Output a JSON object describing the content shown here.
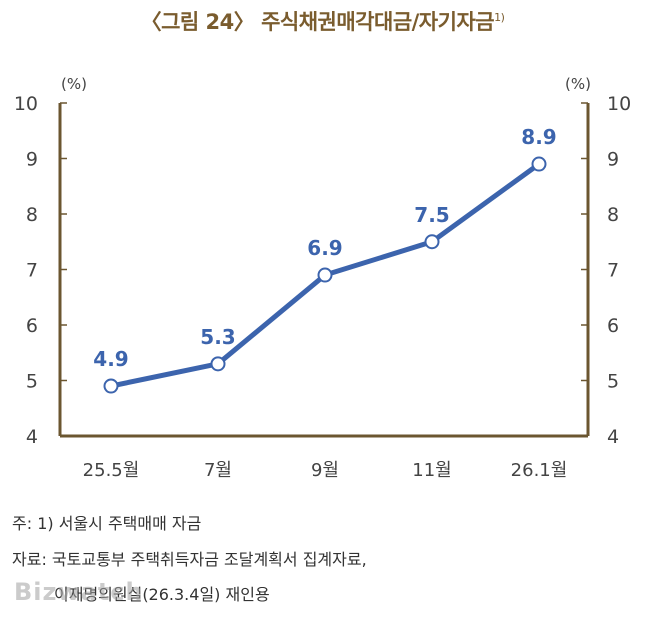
{
  "title": "〈그림 24〉 주식채권매각대금/자기자금",
  "title_sup": "1)",
  "chart_data": {
    "type": "line",
    "title": "〈그림 24〉 주식채권매각대금/자기자금",
    "categories": [
      "25.5월",
      "7월",
      "9월",
      "11월",
      "26.1월"
    ],
    "values": [
      4.9,
      5.3,
      6.9,
      7.5,
      8.9
    ],
    "y_unit_left": "(%)",
    "y_unit_right": "(%)",
    "ylim": [
      4,
      10
    ],
    "y_ticks": [
      "4",
      "5",
      "6",
      "7",
      "8",
      "9",
      "10"
    ],
    "data_labels": [
      "4.9",
      "5.3",
      "6.9",
      "7.5",
      "8.9"
    ],
    "grid": false,
    "line_color": "#3c64ad",
    "axis_color": "#6b5630",
    "label_color": "#3c64ad"
  },
  "notes": {
    "note1": "주:  1) 서울시 주택매매 자금",
    "note2": "자료:  국토교통부 주택취득자금 조달계획서 집계자료,",
    "note3": "이재명의원실(26.3.4일) 재인용"
  },
  "watermark": "Bizwatch"
}
